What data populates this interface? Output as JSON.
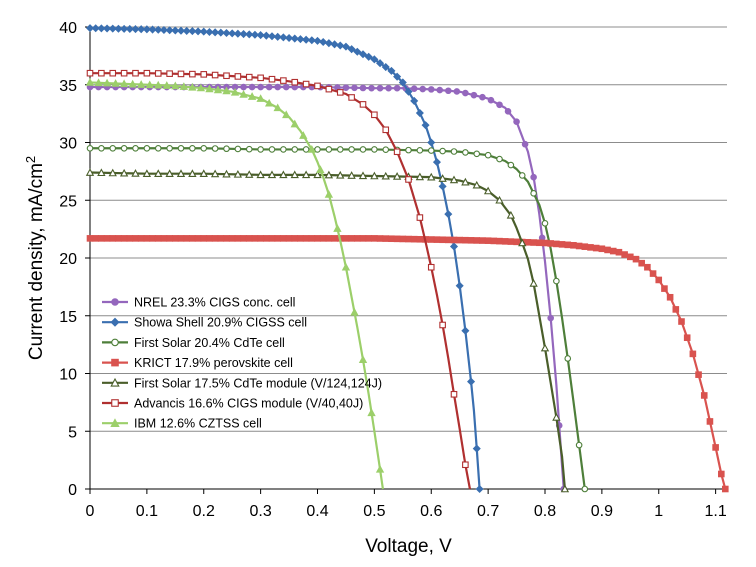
{
  "chart_data": {
    "type": "line",
    "title": "",
    "xlabel": "Voltage, V",
    "ylabel_main": "Current density, mA/cm",
    "ylabel_sup": "2",
    "xlim": [
      0,
      1.12
    ],
    "ylim": [
      0,
      40
    ],
    "x_ticks": [
      0,
      0.1,
      0.2,
      0.3,
      0.4,
      0.5,
      0.6,
      0.7,
      0.8,
      0.9,
      1,
      1.1
    ],
    "x_tick_labels": [
      "0",
      "0.1",
      "0.2",
      "0.3",
      "0.4",
      "0.5",
      "0.6",
      "0.7",
      "0.8",
      "0.9",
      "1",
      "1.1"
    ],
    "y_ticks": [
      0,
      5,
      10,
      15,
      20,
      25,
      30,
      35,
      40
    ],
    "y_tick_labels": [
      "0",
      "5",
      "10",
      "15",
      "20",
      "25",
      "30",
      "35",
      "40"
    ],
    "grid": "horizontal",
    "legend_position": "lower-left",
    "series": [
      {
        "name": "NREL 23.3% CIGS conc. cell",
        "color": "#9467bd",
        "marker": "circle",
        "filled": true,
        "step": 0.015,
        "x": [
          0,
          0.1,
          0.2,
          0.3,
          0.4,
          0.5,
          0.55,
          0.6,
          0.65,
          0.7,
          0.73,
          0.75,
          0.77,
          0.78,
          0.79,
          0.8,
          0.81,
          0.82,
          0.825,
          0.83,
          0.833
        ],
        "y": [
          34.8,
          34.8,
          34.8,
          34.8,
          34.8,
          34.7,
          34.7,
          34.6,
          34.4,
          33.8,
          33.0,
          31.8,
          29.2,
          27.0,
          23.8,
          19.7,
          14.8,
          9.0,
          5.5,
          2.0,
          0
        ]
      },
      {
        "name": "Showa Shell 20.9% CIGSS cell",
        "color": "#3a6fb0",
        "marker": "diamond",
        "filled": true,
        "step": 0.01,
        "x": [
          0,
          0.1,
          0.2,
          0.3,
          0.4,
          0.45,
          0.5,
          0.53,
          0.55,
          0.57,
          0.59,
          0.6,
          0.61,
          0.62,
          0.63,
          0.64,
          0.65,
          0.66,
          0.67,
          0.675,
          0.68,
          0.685
        ],
        "y": [
          39.9,
          39.8,
          39.6,
          39.3,
          38.8,
          38.3,
          37.2,
          36.2,
          35.2,
          33.6,
          31.5,
          30.0,
          28.3,
          26.2,
          23.8,
          21.0,
          17.6,
          13.7,
          9.3,
          6.8,
          3.5,
          0
        ]
      },
      {
        "name": "First Solar 20.4% CdTe cell",
        "color": "#4e7f3a",
        "marker": "circle",
        "filled": false,
        "step": 0.02,
        "x": [
          0,
          0.1,
          0.2,
          0.3,
          0.4,
          0.5,
          0.6,
          0.65,
          0.7,
          0.73,
          0.75,
          0.77,
          0.79,
          0.8,
          0.81,
          0.82,
          0.83,
          0.84,
          0.85,
          0.86,
          0.87
        ],
        "y": [
          29.5,
          29.5,
          29.5,
          29.4,
          29.4,
          29.4,
          29.3,
          29.2,
          28.9,
          28.4,
          27.7,
          26.6,
          24.6,
          23.0,
          20.8,
          18.0,
          14.8,
          11.3,
          7.6,
          3.8,
          0
        ]
      },
      {
        "name": "KRICT 17.9% perovskite cell",
        "color": "#d9534f",
        "marker": "square",
        "filled": true,
        "step": 0.01,
        "x": [
          0,
          0.1,
          0.2,
          0.3,
          0.4,
          0.5,
          0.6,
          0.7,
          0.8,
          0.85,
          0.9,
          0.93,
          0.96,
          0.98,
          1.0,
          1.02,
          1.04,
          1.06,
          1.08,
          1.1,
          1.11,
          1.117
        ],
        "y": [
          21.7,
          21.7,
          21.7,
          21.7,
          21.7,
          21.7,
          21.6,
          21.5,
          21.3,
          21.1,
          20.8,
          20.5,
          19.9,
          19.2,
          18.1,
          16.6,
          14.5,
          11.7,
          8.1,
          3.6,
          1.3,
          0
        ]
      },
      {
        "name": "First Solar 17.5% CdTe module (V/124,124J)",
        "color": "#4a5e2a",
        "marker": "triangle",
        "filled": false,
        "step": 0.02,
        "x": [
          0,
          0.1,
          0.2,
          0.3,
          0.4,
          0.5,
          0.6,
          0.65,
          0.68,
          0.7,
          0.72,
          0.74,
          0.75,
          0.76,
          0.77,
          0.78,
          0.79,
          0.8,
          0.81,
          0.82,
          0.83,
          0.835
        ],
        "y": [
          27.4,
          27.3,
          27.3,
          27.2,
          27.2,
          27.1,
          27.0,
          26.7,
          26.3,
          25.8,
          25.0,
          23.7,
          22.6,
          21.3,
          19.9,
          17.8,
          15.0,
          12.2,
          9.2,
          6.2,
          2.8,
          0
        ]
      },
      {
        "name": "Advancis 16.6% CIGS module (V/40,40J)",
        "color": "#b03030",
        "marker": "square",
        "filled": false,
        "step": 0.02,
        "x": [
          0,
          0.1,
          0.2,
          0.3,
          0.35,
          0.4,
          0.45,
          0.48,
          0.5,
          0.52,
          0.54,
          0.56,
          0.58,
          0.59,
          0.6,
          0.61,
          0.62,
          0.63,
          0.64,
          0.65,
          0.66,
          0.668
        ],
        "y": [
          36.0,
          36.0,
          35.9,
          35.6,
          35.3,
          34.9,
          34.2,
          33.3,
          32.4,
          31.1,
          29.2,
          26.8,
          23.5,
          21.4,
          19.2,
          16.8,
          14.2,
          11.3,
          8.2,
          5.2,
          2.1,
          0
        ]
      },
      {
        "name": "IBM 12.6% CZTSS cell",
        "color": "#9ccf6a",
        "marker": "triangle",
        "filled": true,
        "step": 0.015,
        "x": [
          0,
          0.05,
          0.1,
          0.15,
          0.2,
          0.25,
          0.3,
          0.33,
          0.35,
          0.37,
          0.39,
          0.4,
          0.41,
          0.42,
          0.43,
          0.44,
          0.45,
          0.46,
          0.47,
          0.48,
          0.49,
          0.5,
          0.51,
          0.515
        ],
        "y": [
          35.2,
          35.1,
          35.0,
          34.9,
          34.7,
          34.4,
          33.8,
          33.0,
          32.2,
          31.0,
          29.4,
          28.3,
          27.0,
          25.5,
          23.6,
          21.5,
          19.2,
          16.6,
          14.0,
          11.2,
          8.2,
          5.0,
          1.7,
          0
        ]
      }
    ]
  }
}
